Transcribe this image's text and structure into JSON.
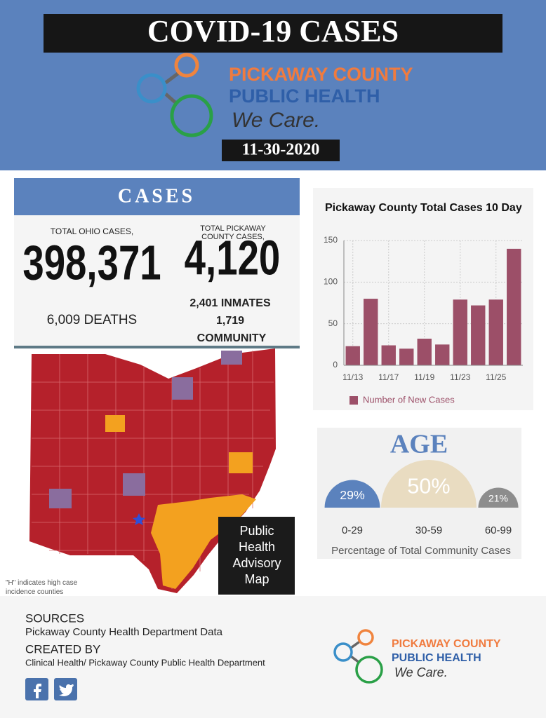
{
  "header": {
    "title": "COVID-19 CASES",
    "org_line1": "PICKAWAY COUNTY",
    "org_line2": "PUBLIC HEALTH",
    "tagline": "We Care.",
    "date": "11-30-2020"
  },
  "cases": {
    "heading": "CASES",
    "ohio_label": "TOTAL OHIO CASES,",
    "ohio_total": "398,371",
    "ohio_deaths": "6,009 DEATHS",
    "county_label": "TOTAL PICKAWAY COUNTY CASES,",
    "county_total": "4,120",
    "inmates": "2,401 INMATES",
    "community_count": "1,719",
    "community_label": "COMMUNITY"
  },
  "map": {
    "caption": "Public Health Advisory Map",
    "note": "\"H\" indicates high case incidence counties"
  },
  "chart_data": {
    "type": "bar",
    "title": "Pickaway County Total Cases 10 Day",
    "categories": [
      "11/13",
      null,
      "11/17",
      null,
      "11/19",
      null,
      "11/23",
      null,
      "11/25",
      null
    ],
    "series": [
      {
        "name": "Number of New Cases",
        "color": "#9c4f68",
        "values": [
          23,
          80,
          24,
          20,
          32,
          25,
          79,
          72,
          79,
          140
        ]
      }
    ],
    "ylim": [
      0,
      150
    ],
    "yticks": [
      0,
      50,
      100,
      150
    ],
    "grid": true,
    "legend": "bottom"
  },
  "age": {
    "title": "AGE",
    "caption": "Percentage of Total Community Cases",
    "groups": [
      {
        "label": "0-29",
        "value": 29,
        "value_label": "29%",
        "color": "#5b82bd"
      },
      {
        "label": "30-59",
        "value": 50,
        "value_label": "50%",
        "color": "#e9dcc1"
      },
      {
        "label": "60-99",
        "value": 21,
        "value_label": "21%",
        "color": "#8d8d8d"
      }
    ]
  },
  "footer": {
    "sources_heading": "SOURCES",
    "sources": "Pickaway County Health Department Data",
    "created_heading": "CREATED BY",
    "created": "Clinical Health/ Pickaway County Public Health Department",
    "org_line1": "PICKAWAY COUNTY",
    "org_line2": "PUBLIC HEALTH",
    "tagline": "We Care."
  }
}
